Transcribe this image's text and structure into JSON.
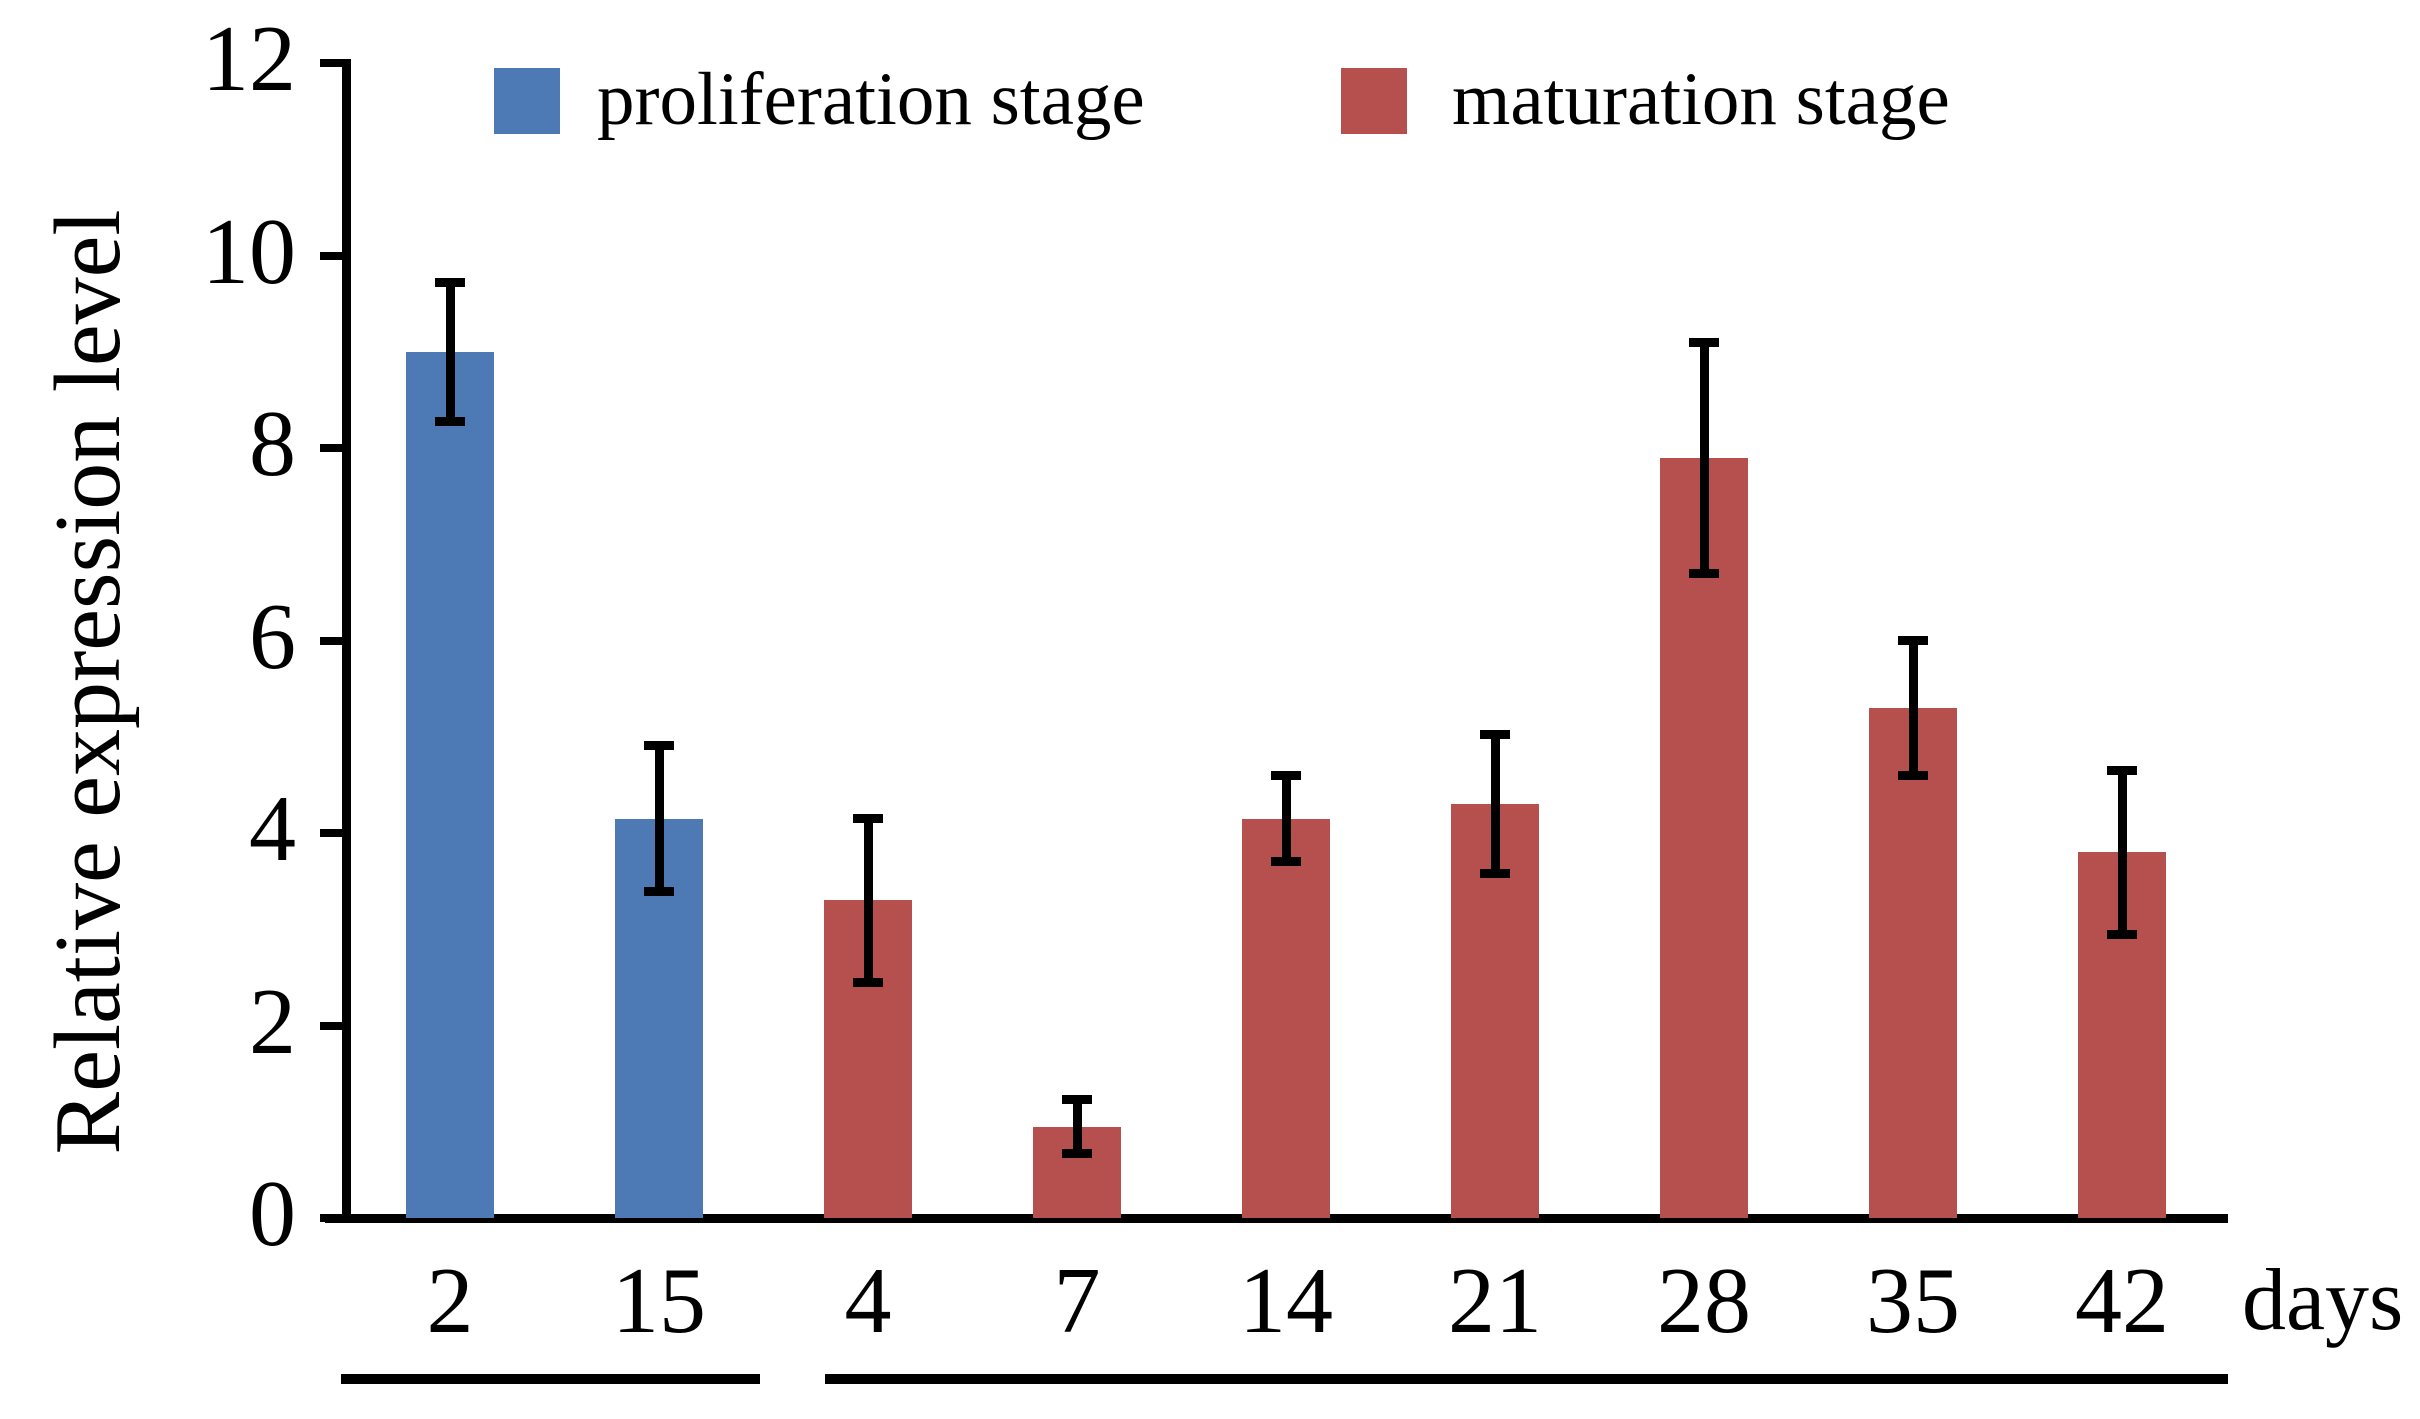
{
  "figure": {
    "background": "#ffffff",
    "text_color": "#000000"
  },
  "legend": {
    "items": [
      {
        "label": "proliferation stage",
        "color": "#4D7AB5"
      },
      {
        "label": "maturation stage",
        "color": "#B5504E"
      }
    ]
  },
  "chart_data": {
    "type": "bar",
    "title": "",
    "ylabel": "Relative expression level",
    "xlabel": "days",
    "ylim": [
      0,
      12
    ],
    "yticks": [
      0,
      2,
      4,
      6,
      8,
      10,
      12
    ],
    "grid": false,
    "legend_position": "top",
    "error_bars": true,
    "group_underlines": true,
    "categories": [
      "2",
      "15",
      "4",
      "7",
      "14",
      "21",
      "28",
      "35",
      "42"
    ],
    "series": [
      {
        "name": "proliferation stage",
        "color": "#4D7AB5",
        "days": [
          "2",
          "15"
        ],
        "values": [
          9.0,
          4.15
        ],
        "errors": [
          0.72,
          0.76
        ]
      },
      {
        "name": "maturation stage",
        "color": "#B5504E",
        "days": [
          "4",
          "7",
          "14",
          "21",
          "28",
          "35",
          "42"
        ],
        "values": [
          3.3,
          0.95,
          4.15,
          4.3,
          7.9,
          5.3,
          3.8
        ],
        "errors": [
          0.85,
          0.28,
          0.45,
          0.72,
          1.2,
          0.7,
          0.85
        ]
      }
    ]
  }
}
